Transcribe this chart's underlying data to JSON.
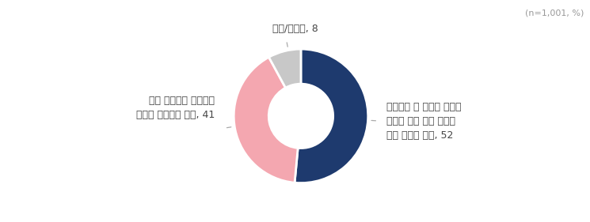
{
  "slices": [
    52,
    41,
    8
  ],
  "colors": [
    "#1e3a6e",
    "#f4a7b0",
    "#c8c8c8"
  ],
  "labels": [
    "의사협회 및 전문가 의견을\n수렴해 정원 확대 여부를\n다시 정해야 한다, 52",
    "현재 계획대로 내년부터\n정원을 확대해야 한다, 41",
    "모름/무응답, 8"
  ],
  "annotation_note": "(n=1,001, %)",
  "background_color": "#ffffff",
  "text_color": "#444444",
  "label_fontsize": 9.0,
  "note_fontsize": 8.0,
  "line_color": "#aaaaaa"
}
